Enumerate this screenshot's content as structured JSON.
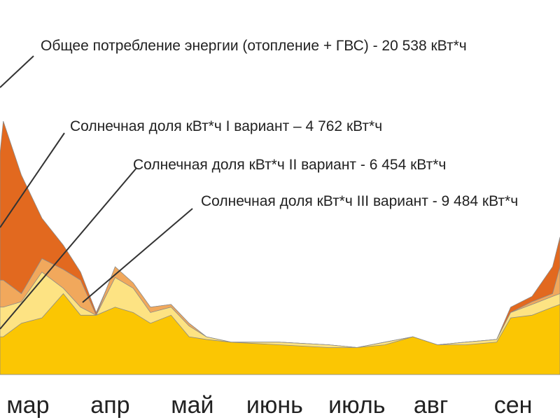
{
  "chart_data": {
    "type": "area",
    "x": [
      2.66,
      2.7,
      2.92,
      3.17,
      3.43,
      3.64,
      3.83,
      4.06,
      4.28,
      4.49,
      4.74,
      4.96,
      5.17,
      5.47,
      6.06,
      6.66,
      7.0,
      7.34,
      7.68,
      7.98,
      8.32,
      8.7,
      8.87,
      9.13,
      9.38,
      9.47
    ],
    "xlim": [
      2.66,
      9.47
    ],
    "xticks": [
      {
        "value": 3,
        "label": "мар"
      },
      {
        "value": 4,
        "label": "апр"
      },
      {
        "value": 5,
        "label": "май"
      },
      {
        "value": 6,
        "label": "июнь"
      },
      {
        "value": 7,
        "label": "июль"
      },
      {
        "value": 7.9,
        "label": "авг"
      },
      {
        "value": 8.9,
        "label": "сен"
      }
    ],
    "ylim": [
      0,
      100
    ],
    "series": [
      {
        "name": "Общее потребление энергии (отопление + ГВС) - 20 538 кВт*ч",
        "color": "#e2691f",
        "values": [
          82,
          94,
          74,
          58,
          48,
          38,
          23,
          39,
          32,
          25,
          26,
          19,
          14,
          12,
          12,
          11,
          10,
          12,
          14,
          11,
          12,
          13,
          25,
          29,
          40,
          51
        ]
      },
      {
        "name": "Солнечная доля кВт*ч III вариант - 9 484 кВт*ч",
        "color": "#f1a85c",
        "values": [
          35,
          35,
          30,
          43,
          39,
          35,
          22,
          40,
          34,
          25,
          26,
          19,
          14,
          12,
          12,
          11,
          10,
          12,
          14,
          11,
          12,
          13,
          23,
          27,
          30,
          40
        ]
      },
      {
        "name": "Солнечная доля кВт*ч II вариант - 6 454 кВт*ч",
        "color": "#fde383",
        "values": [
          25,
          25,
          27,
          38,
          32,
          25,
          22,
          36,
          32,
          23,
          25,
          18,
          14,
          12,
          12,
          11,
          10,
          12,
          14,
          11,
          12,
          13,
          23,
          26,
          29,
          30
        ]
      },
      {
        "name": "Солнечная доля кВт*ч I вариант – 4 762 кВт*ч",
        "color": "#fbc603",
        "values": [
          14,
          14,
          19,
          21,
          30,
          22,
          22,
          25,
          23,
          19,
          22,
          14,
          13,
          12,
          11,
          10,
          10,
          11,
          14,
          11,
          11,
          12,
          21,
          22,
          25,
          26
        ]
      }
    ]
  }
}
